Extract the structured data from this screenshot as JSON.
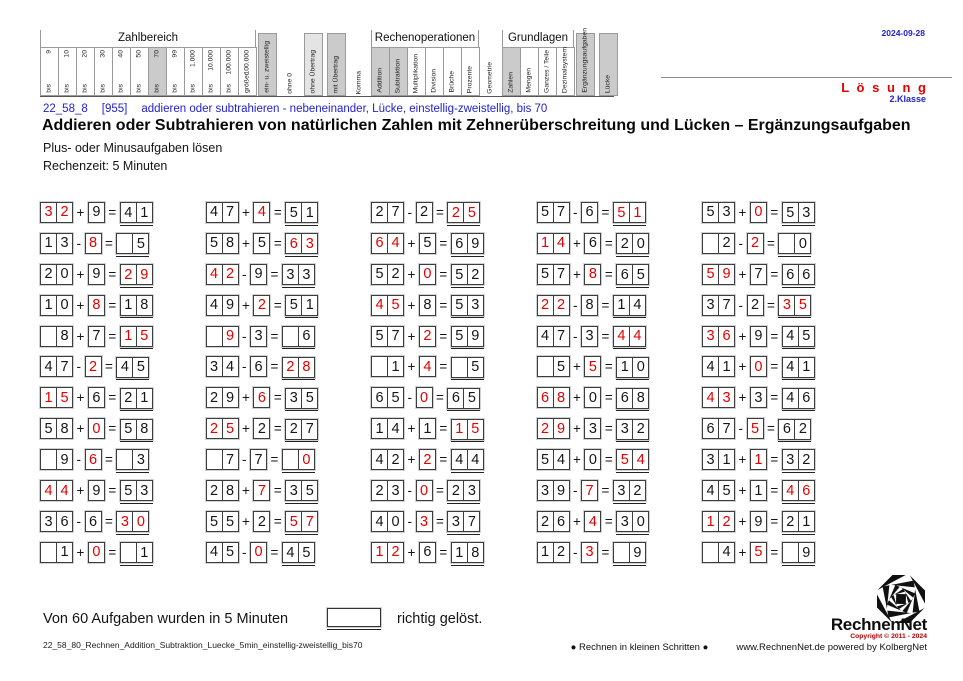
{
  "colors": {
    "accent_red": "#e30000",
    "accent_blue": "#2222cf",
    "highlight_gray": "#cbcbcb",
    "highlight_light": "#e4e4e4"
  },
  "page": {
    "date": "2024-09-28",
    "solution_label": "L ö s u n g",
    "grade": "2.Klasse"
  },
  "classification": {
    "sections": [
      {
        "group": "Zahlbereich",
        "split": true,
        "items": [
          {
            "t": "bis 9"
          },
          {
            "t": "bis 10"
          },
          {
            "t": "bis 20"
          },
          {
            "t": "bis 30"
          },
          {
            "t": "bis 40"
          },
          {
            "t": "bis 50"
          },
          {
            "t": "bis 70",
            "hl": 1
          },
          {
            "t": "bis 99"
          },
          {
            "t": "bis 1.000"
          },
          {
            "t": "bis 10.000"
          },
          {
            "t": "bis 100.000"
          },
          {
            "t": "größer 100.000"
          }
        ]
      },
      {
        "items": [
          {
            "t": "ein- u. zweistellig",
            "hl": 1
          }
        ]
      },
      {
        "items": [
          {
            "t": "ohne 0"
          }
        ]
      },
      {
        "items": [
          {
            "t": "ohne Übertrag",
            "hl": 2
          }
        ]
      },
      {
        "items": [
          {
            "t": "mit Übertrag",
            "hl": 1
          }
        ]
      },
      {
        "items": [
          {
            "t": "Komma"
          }
        ]
      },
      {
        "group": "Rechenoperationen",
        "items": [
          {
            "t": "Addition",
            "hl": 1
          },
          {
            "t": "Subtraktion",
            "hl": 1
          },
          {
            "t": "Multiplikation"
          },
          {
            "t": "Division"
          },
          {
            "t": "Brüche"
          },
          {
            "t": "Prozente"
          }
        ]
      },
      {
        "items": [
          {
            "t": "Geometrie"
          }
        ]
      },
      {
        "group": "Grundlagen",
        "items": [
          {
            "t": "Zahlen",
            "hl": 1
          },
          {
            "t": "Mengen"
          },
          {
            "t": "Ganzes / Teile"
          },
          {
            "t": "Dezimalsystem"
          }
        ]
      },
      {
        "items": [
          {
            "t": "Ergänzungsaufgaben",
            "hl": 1
          }
        ]
      },
      {
        "items": [
          {
            "t": "Lücke",
            "hl": 1
          }
        ]
      }
    ]
  },
  "titles": {
    "meta_id": "22_58_8",
    "meta_code": "[955]",
    "meta_desc": "addieren oder subtrahieren - nebeneinander, Lücke, einstellig-zweistellig, bis 70",
    "main": "Addieren oder Subtrahieren von natürlichen Zahlen mit Zehnerüberschreitung und Lücken – Ergänzungsaufgaben",
    "sub": "Plus- oder Minusaufgaben lösen",
    "time": "Rechenzeit: 5 Minuten"
  },
  "problems": [
    {
      "a": "32",
      "op": "+",
      "b": "9",
      "r": "41",
      "x": "a"
    },
    {
      "a": "47",
      "op": "+",
      "b": "4",
      "r": "51",
      "x": "b"
    },
    {
      "a": "27",
      "op": "-",
      "b": "2",
      "r": "25",
      "x": "r"
    },
    {
      "a": "57",
      "op": "-",
      "b": "6",
      "r": "51",
      "x": "r"
    },
    {
      "a": "53",
      "op": "+",
      "b": "0",
      "r": "53",
      "x": "b"
    },
    {
      "a": "13",
      "op": "-",
      "b": "8",
      "r": "5",
      "x": "b"
    },
    {
      "a": "58",
      "op": "+",
      "b": "5",
      "r": "63",
      "x": "r"
    },
    {
      "a": "64",
      "op": "+",
      "b": "5",
      "r": "69",
      "x": "a"
    },
    {
      "a": "14",
      "op": "+",
      "b": "6",
      "r": "20",
      "x": "a"
    },
    {
      "a": "2",
      "op": "-",
      "b": "2",
      "r": "0",
      "x": "b"
    },
    {
      "a": "20",
      "op": "+",
      "b": "9",
      "r": "29",
      "x": "r"
    },
    {
      "a": "42",
      "op": "-",
      "b": "9",
      "r": "33",
      "x": "a"
    },
    {
      "a": "52",
      "op": "+",
      "b": "0",
      "r": "52",
      "x": "b"
    },
    {
      "a": "57",
      "op": "+",
      "b": "8",
      "r": "65",
      "x": "b"
    },
    {
      "a": "59",
      "op": "+",
      "b": "7",
      "r": "66",
      "x": "a"
    },
    {
      "a": "10",
      "op": "+",
      "b": "8",
      "r": "18",
      "x": "b"
    },
    {
      "a": "49",
      "op": "+",
      "b": "2",
      "r": "51",
      "x": "b"
    },
    {
      "a": "45",
      "op": "+",
      "b": "8",
      "r": "53",
      "x": "a"
    },
    {
      "a": "22",
      "op": "-",
      "b": "8",
      "r": "14",
      "x": "a"
    },
    {
      "a": "37",
      "op": "-",
      "b": "2",
      "r": "35",
      "x": "r"
    },
    {
      "a": "8",
      "op": "+",
      "b": "7",
      "r": "15",
      "x": "r"
    },
    {
      "a": "9",
      "op": "-",
      "b": "3",
      "r": "6",
      "x": "a"
    },
    {
      "a": "57",
      "op": "+",
      "b": "2",
      "r": "59",
      "x": "b"
    },
    {
      "a": "47",
      "op": "-",
      "b": "3",
      "r": "44",
      "x": "r"
    },
    {
      "a": "36",
      "op": "+",
      "b": "9",
      "r": "45",
      "x": "a"
    },
    {
      "a": "47",
      "op": "-",
      "b": "2",
      "r": "45",
      "x": "b"
    },
    {
      "a": "34",
      "op": "-",
      "b": "6",
      "r": "28",
      "x": "r"
    },
    {
      "a": "1",
      "op": "+",
      "b": "4",
      "r": "5",
      "x": "b"
    },
    {
      "a": "5",
      "op": "+",
      "b": "5",
      "r": "10",
      "x": "b"
    },
    {
      "a": "41",
      "op": "+",
      "b": "0",
      "r": "41",
      "x": "b"
    },
    {
      "a": "15",
      "op": "+",
      "b": "6",
      "r": "21",
      "x": "a"
    },
    {
      "a": "29",
      "op": "+",
      "b": "6",
      "r": "35",
      "x": "b"
    },
    {
      "a": "65",
      "op": "-",
      "b": "0",
      "r": "65",
      "x": "b"
    },
    {
      "a": "68",
      "op": "+",
      "b": "0",
      "r": "68",
      "x": "a"
    },
    {
      "a": "43",
      "op": "+",
      "b": "3",
      "r": "46",
      "x": "a"
    },
    {
      "a": "58",
      "op": "+",
      "b": "0",
      "r": "58",
      "x": "b"
    },
    {
      "a": "25",
      "op": "+",
      "b": "2",
      "r": "27",
      "x": "a"
    },
    {
      "a": "14",
      "op": "+",
      "b": "1",
      "r": "15",
      "x": "r"
    },
    {
      "a": "29",
      "op": "+",
      "b": "3",
      "r": "32",
      "x": "a"
    },
    {
      "a": "67",
      "op": "-",
      "b": "5",
      "r": "62",
      "x": "b"
    },
    {
      "a": "9",
      "op": "-",
      "b": "6",
      "r": "3",
      "x": "b"
    },
    {
      "a": "7",
      "op": "-",
      "b": "7",
      "r": "0",
      "x": "r"
    },
    {
      "a": "42",
      "op": "+",
      "b": "2",
      "r": "44",
      "x": "b"
    },
    {
      "a": "54",
      "op": "+",
      "b": "0",
      "r": "54",
      "x": "r"
    },
    {
      "a": "31",
      "op": "+",
      "b": "1",
      "r": "32",
      "x": "b"
    },
    {
      "a": "44",
      "op": "+",
      "b": "9",
      "r": "53",
      "x": "a"
    },
    {
      "a": "28",
      "op": "+",
      "b": "7",
      "r": "35",
      "x": "b"
    },
    {
      "a": "23",
      "op": "-",
      "b": "0",
      "r": "23",
      "x": "b"
    },
    {
      "a": "39",
      "op": "-",
      "b": "7",
      "r": "32",
      "x": "b"
    },
    {
      "a": "45",
      "op": "+",
      "b": "1",
      "r": "46",
      "x": "r"
    },
    {
      "a": "36",
      "op": "-",
      "b": "6",
      "r": "30",
      "x": "r"
    },
    {
      "a": "55",
      "op": "+",
      "b": "2",
      "r": "57",
      "x": "r"
    },
    {
      "a": "40",
      "op": "-",
      "b": "3",
      "r": "37",
      "x": "b"
    },
    {
      "a": "26",
      "op": "+",
      "b": "4",
      "r": "30",
      "x": "b"
    },
    {
      "a": "12",
      "op": "+",
      "b": "9",
      "r": "21",
      "x": "a"
    },
    {
      "a": "1",
      "op": "+",
      "b": "0",
      "r": "1",
      "x": "b"
    },
    {
      "a": "45",
      "op": "-",
      "b": "0",
      "r": "45",
      "x": "b"
    },
    {
      "a": "12",
      "op": "+",
      "b": "6",
      "r": "18",
      "x": "a"
    },
    {
      "a": "12",
      "op": "-",
      "b": "3",
      "r": "9",
      "x": "b"
    },
    {
      "a": "4",
      "op": "+",
      "b": "5",
      "r": "9",
      "x": "b"
    }
  ],
  "bottom": {
    "tally_before": "Von 60 Aufgaben wurden in 5 Minuten",
    "tally_after": "richtig gelöst.",
    "file_id": "22_58_80_Rechnen_Addition_Subtraktion_Luecke_5min_einstellig-zweistellig_bis70"
  },
  "footer": {
    "brand": "RechnenNet",
    "copyright": "Copyright © 2011 - 2024",
    "slogan": "●  Rechnen in kleinen Schritten  ●",
    "site": "www.RechnenNet.de powered by KolbergNet"
  }
}
